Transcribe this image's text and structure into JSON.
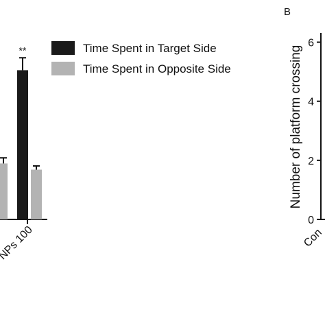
{
  "chart_data": [
    {
      "type": "bar",
      "categories": [
        "NPs 100"
      ],
      "visible_partial_categories": [
        "(cut-off group)"
      ],
      "series": [
        {
          "name": "Time Spent in Target Side",
          "color": "#1a1a1a",
          "values": [
            48
          ],
          "errors": [
            4
          ]
        },
        {
          "name": "Time Spent in Opposite Side",
          "color": "#b3b3b3",
          "values": [
            16
          ],
          "errors": [
            1.2
          ]
        }
      ],
      "partial_left_group": {
        "target": null,
        "opposite": 18,
        "opposite_error": 1.8
      },
      "significance": [
        "**"
      ],
      "ylim": [
        0,
        60
      ],
      "legend_position": "top-right"
    },
    {
      "type": "bar",
      "panel_label": "B",
      "ylabel": "Number of platform crossing",
      "yticks": [
        "0",
        "2",
        "4",
        "6"
      ],
      "ylim": [
        0,
        6.5
      ],
      "first_category_fragment": "Con",
      "categories": [],
      "values": []
    }
  ]
}
